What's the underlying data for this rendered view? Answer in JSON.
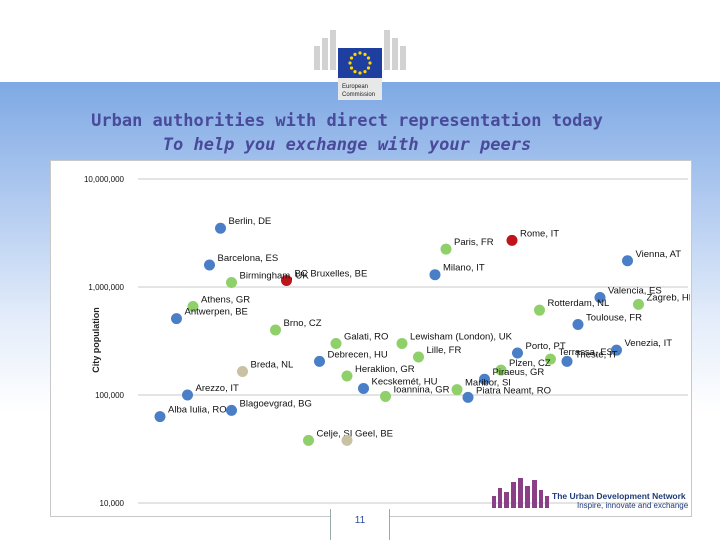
{
  "slide": {
    "title": "Urban authorities with direct representation today",
    "subtitle": "To help you exchange with your peers",
    "page_number": "11",
    "logo_text": "European Commission",
    "network_name": "The Urban Development Network",
    "network_tagline": "Inspire, innovate and exchange"
  },
  "colors": {
    "blue": "#4a7ec6",
    "green": "#8fd06a",
    "red": "#c0141c",
    "beige": "#c8c1a4",
    "title": "#4a4a9a"
  },
  "chart_data": {
    "type": "scatter",
    "title": "",
    "xlabel": "",
    "ylabel": "City population",
    "yscale": "log",
    "ylim": [
      10000,
      10000000
    ],
    "yticks": [
      10000,
      100000,
      1000000,
      10000000
    ],
    "ytick_labels": [
      "10,000",
      "100,000",
      "1,000,000",
      "10,000,000"
    ],
    "xlim": [
      0,
      100
    ],
    "grid": true,
    "points": [
      {
        "label": "Berlin, DE",
        "x": 15,
        "y": 3500000,
        "color": "blue"
      },
      {
        "label": "Barcelona, ES",
        "x": 13,
        "y": 1600000,
        "color": "blue"
      },
      {
        "label": "Paris, FR",
        "x": 56,
        "y": 2240000,
        "color": "green"
      },
      {
        "label": "Rome, IT",
        "x": 68,
        "y": 2700000,
        "color": "red"
      },
      {
        "label": "Vienna, AT",
        "x": 89,
        "y": 1750000,
        "color": "blue"
      },
      {
        "label": "BC Bruxelles, BE",
        "x": 27,
        "y": 1150000,
        "color": "red"
      },
      {
        "label": "Birmingham, UK",
        "x": 17,
        "y": 1100000,
        "color": "green"
      },
      {
        "label": "Milano, IT",
        "x": 54,
        "y": 1300000,
        "color": "blue"
      },
      {
        "label": "Valencia, ES",
        "x": 84,
        "y": 800000,
        "color": "blue"
      },
      {
        "label": "Athens, GR",
        "x": 10,
        "y": 660000,
        "color": "green"
      },
      {
        "label": "Antwerpen, BE",
        "x": 7,
        "y": 510000,
        "color": "blue"
      },
      {
        "label": "Zagreb, HR",
        "x": 91,
        "y": 690000,
        "color": "green"
      },
      {
        "label": "Rotterdam, NL",
        "x": 73,
        "y": 610000,
        "color": "green"
      },
      {
        "label": "Toulouse, FR",
        "x": 80,
        "y": 450000,
        "color": "blue"
      },
      {
        "label": "Brno, CZ",
        "x": 25,
        "y": 400000,
        "color": "green"
      },
      {
        "label": "Lewisham (London), UK",
        "x": 48,
        "y": 300000,
        "color": "green"
      },
      {
        "label": "Galati, RO",
        "x": 36,
        "y": 300000,
        "color": "green"
      },
      {
        "label": "Porto, PT",
        "x": 69,
        "y": 245000,
        "color": "blue"
      },
      {
        "label": "Terrassa, ES",
        "x": 75,
        "y": 215000,
        "color": "green"
      },
      {
        "label": "Venezia, IT",
        "x": 87,
        "y": 260000,
        "color": "blue"
      },
      {
        "label": "Debrecen, HU",
        "x": 33,
        "y": 205000,
        "color": "blue"
      },
      {
        "label": "Lille, FR",
        "x": 51,
        "y": 225000,
        "color": "green"
      },
      {
        "label": "Breda, NL",
        "x": 19,
        "y": 165000,
        "color": "beige"
      },
      {
        "label": "Heraklion, GR",
        "x": 38,
        "y": 150000,
        "color": "green"
      },
      {
        "label": "Plzen, CZ",
        "x": 66,
        "y": 170000,
        "color": "green"
      },
      {
        "label": "Trieste, IT",
        "x": 78,
        "y": 205000,
        "color": "blue"
      },
      {
        "label": "Kecskemét, HU",
        "x": 41,
        "y": 115000,
        "color": "blue"
      },
      {
        "label": "Piraeus, GR",
        "x": 63,
        "y": 140000,
        "color": "blue"
      },
      {
        "label": "Maribor, SI",
        "x": 58,
        "y": 112000,
        "color": "green"
      },
      {
        "label": "Arezzo, IT",
        "x": 9,
        "y": 100000,
        "color": "blue"
      },
      {
        "label": "Alba Iulia, RO",
        "x": 4,
        "y": 63000,
        "color": "blue"
      },
      {
        "label": "Blagoevgrad, BG",
        "x": 17,
        "y": 72000,
        "color": "blue"
      },
      {
        "label": "Ioannina, GR",
        "x": 45,
        "y": 97000,
        "color": "green"
      },
      {
        "label": "Piatra Neamt, RO",
        "x": 60,
        "y": 95000,
        "color": "blue"
      },
      {
        "label": "Celje, SI",
        "x": 31,
        "y": 38000,
        "color": "green"
      },
      {
        "label": "Geel, BE",
        "x": 38,
        "y": 38000,
        "color": "beige"
      }
    ]
  }
}
